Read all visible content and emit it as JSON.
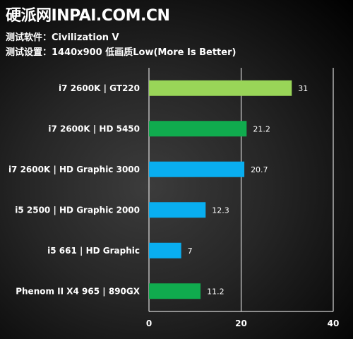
{
  "header": {
    "title": "硬派网INPAI.COM.CN",
    "software_line": "测试软件：Civilization V",
    "settings_line": "测试设置：1440x900 低画质Low(More Is Better)"
  },
  "colors": {
    "lime_green": "#99d558",
    "green": "#10ab4e",
    "blue": "#09aef0",
    "grid": "#ffffff",
    "text": "#ffffff"
  },
  "chart_data": {
    "type": "bar",
    "orientation": "horizontal",
    "title": "",
    "xlabel": "",
    "ylabel": "",
    "xlim": [
      0,
      40
    ],
    "x_ticks": [
      0,
      20,
      40
    ],
    "grid": true,
    "legend": "none",
    "categories": [
      "i7 2600K | GT220",
      "i7 2600K | HD 5450",
      "i7 2600K | HD Graphic 3000",
      "i5 2500 | HD Graphic 2000",
      "i5 661 | HD Graphic",
      "Phenom II X4 965 | 890GX"
    ],
    "values": [
      31,
      21.2,
      20.7,
      12.3,
      7,
      11.2
    ],
    "value_labels": [
      "31",
      "21.2",
      "20.7",
      "12.3",
      "7",
      "11.2"
    ],
    "bar_colors": [
      "#99d558",
      "#10ab4e",
      "#09aef0",
      "#09aef0",
      "#09aef0",
      "#10ab4e"
    ]
  }
}
